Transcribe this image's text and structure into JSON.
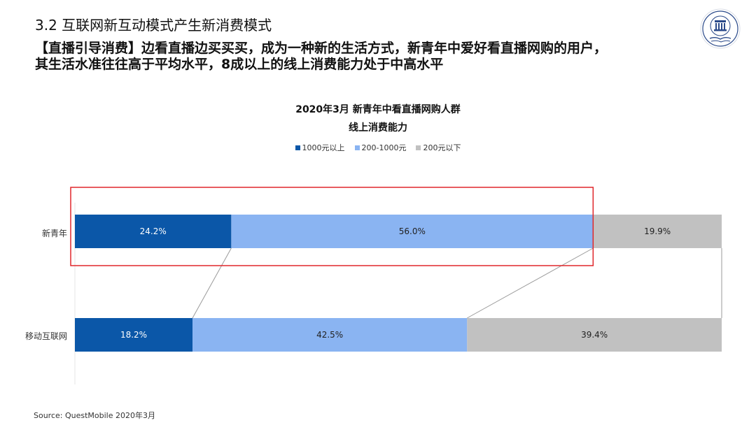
{
  "header": {
    "section_title": "3.2 互联网新互动模式产生新消费模式",
    "lead": "【直播引导消费】边看直播边买买买，成为一种新的生活方式，新青年中爱好看直播网购的用户，其生活水准往往高于平均水平，8成以上的线上消费能力处于中高水平"
  },
  "colors": {
    "dark_blue": "#0b57a8",
    "light_blue": "#8ab4f2",
    "gray": "#c1c1c1",
    "highlight": "#e0272b"
  },
  "chart_data": {
    "type": "bar",
    "orientation": "horizontal",
    "stacked": true,
    "percent": true,
    "title": "2020年3月 新青年中看直播网购人群",
    "subtitle": "线上消费能力",
    "categories": [
      "新青年",
      "移动互联网"
    ],
    "series": [
      {
        "name": "1000元以上",
        "color": "#0b57a8",
        "values": [
          24.2,
          18.2
        ],
        "labels": [
          "24.2%",
          "18.2%"
        ]
      },
      {
        "name": "200-1000元",
        "color": "#8ab4f2",
        "values": [
          56.0,
          42.5
        ],
        "labels": [
          "56.0%",
          "42.5%"
        ]
      },
      {
        "name": "200元以下",
        "color": "#c1c1c1",
        "values": [
          19.9,
          39.4
        ],
        "labels": [
          "19.9%",
          "39.4%"
        ]
      }
    ],
    "legend_position": "top-center",
    "grid": false,
    "annotations": {
      "highlight_box_category": "新青年",
      "highlight_box_series": [
        "1000元以上",
        "200-1000元"
      ],
      "connector_lines": true
    }
  },
  "source": "Source:   QuestMobile 2020年3月"
}
